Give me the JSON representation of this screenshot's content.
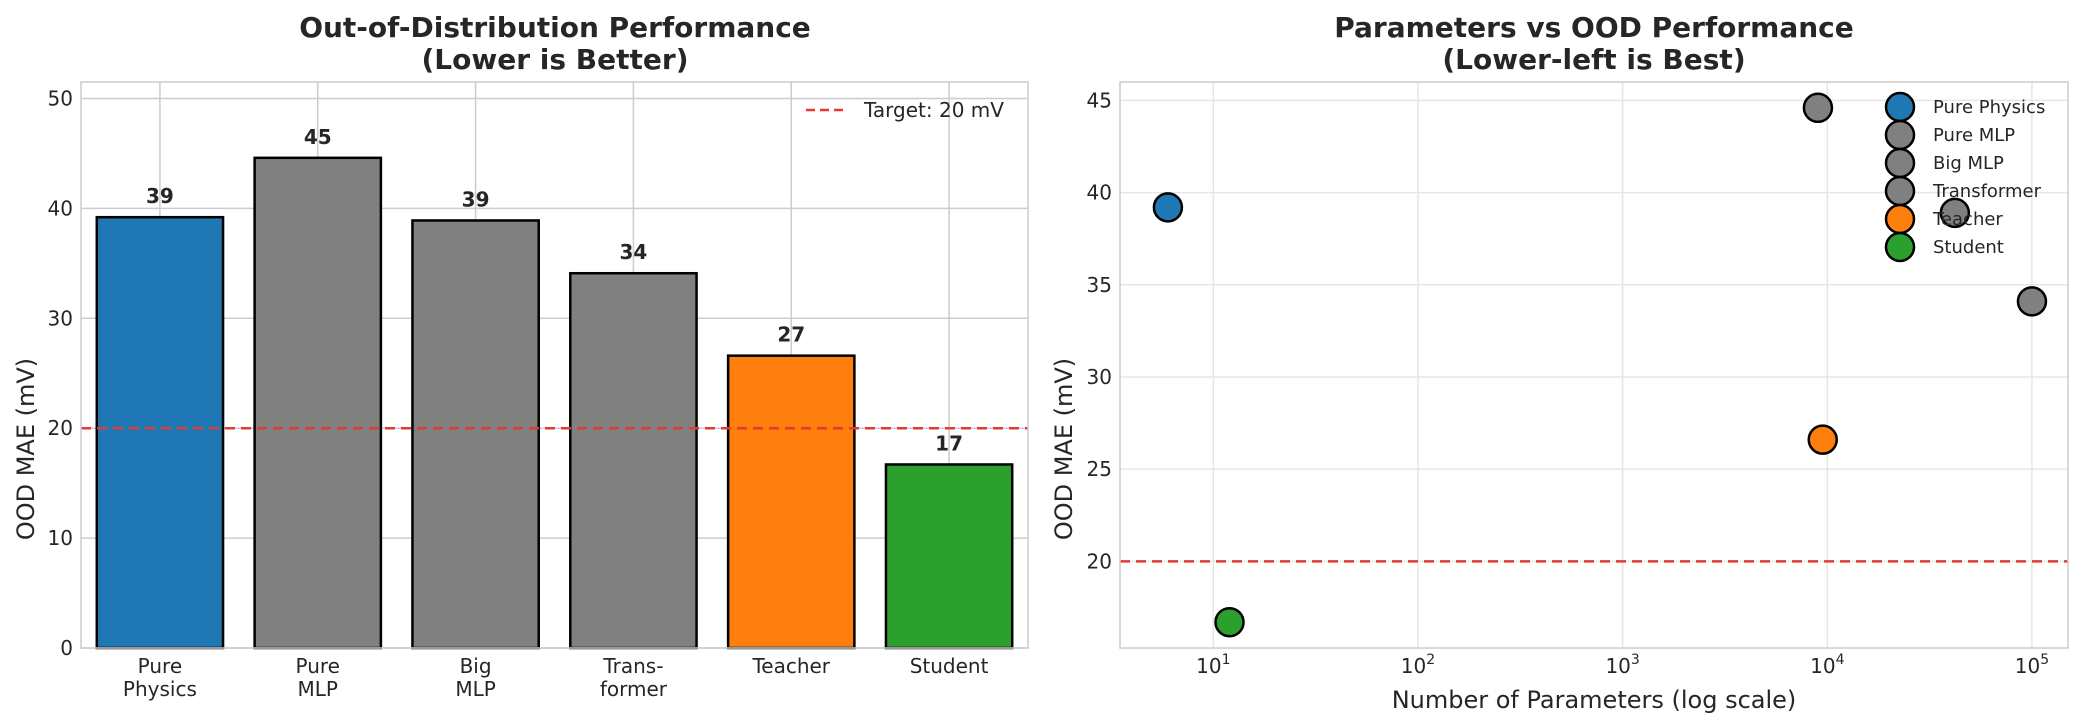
{
  "chart_data": [
    {
      "type": "bar",
      "title": "Out-of-Distribution Performance",
      "subtitle": "(Lower is Better)",
      "xlabel": "",
      "ylabel": "OOD MAE (mV)",
      "ylim": [
        0,
        51.5
      ],
      "yticks": [
        "0",
        "10",
        "20",
        "30",
        "40",
        "50"
      ],
      "grid": true,
      "categories": [
        [
          "Pure",
          "Physics"
        ],
        [
          "Pure",
          "MLP"
        ],
        [
          "Big",
          "MLP"
        ],
        [
          "Trans-",
          "former"
        ],
        [
          "Teacher"
        ],
        [
          "Student"
        ]
      ],
      "values": [
        39.2,
        44.6,
        38.9,
        34.1,
        26.6,
        16.7
      ],
      "data_labels": [
        "39",
        "45",
        "39",
        "34",
        "27",
        "17"
      ],
      "colors": [
        "#1f77b4",
        "#808080",
        "#808080",
        "#808080",
        "#ff7f0e",
        "#2ca02c"
      ],
      "reference_line": {
        "value": 20,
        "label": "Target: 20 mV",
        "color": "#e53935"
      },
      "legend_position": "top-right"
    },
    {
      "type": "scatter",
      "title": "Parameters vs OOD Performance",
      "subtitle": "(Lower-left is Best)",
      "xlabel": "Number of Parameters (log scale)",
      "ylabel": "OOD MAE (mV)",
      "x_scale": "log",
      "xlim": [
        3.5,
        150000
      ],
      "ylim": [
        15.3,
        46
      ],
      "xticks": [
        {
          "value": 10,
          "base": "10",
          "exp": "1"
        },
        {
          "value": 100,
          "base": "10",
          "exp": "2"
        },
        {
          "value": 1000,
          "base": "10",
          "exp": "3"
        },
        {
          "value": 10000,
          "base": "10",
          "exp": "4"
        },
        {
          "value": 100000,
          "base": "10",
          "exp": "5"
        }
      ],
      "yticks": [
        "20",
        "25",
        "30",
        "35",
        "40",
        "45"
      ],
      "grid": true,
      "reference_line": {
        "value": 20,
        "color": "#e53935"
      },
      "legend_position": "top-right",
      "series": [
        {
          "name": "Pure Physics",
          "x": 6,
          "y": 39.2,
          "color": "#1f77b4"
        },
        {
          "name": "Pure MLP",
          "x": 9000,
          "y": 44.6,
          "color": "#808080"
        },
        {
          "name": "Big MLP",
          "x": 42000,
          "y": 38.9,
          "color": "#808080"
        },
        {
          "name": "Transformer",
          "x": 100000,
          "y": 34.1,
          "color": "#808080"
        },
        {
          "name": "Teacher",
          "x": 9500,
          "y": 26.6,
          "color": "#ff7f0e"
        },
        {
          "name": "Student",
          "x": 12,
          "y": 16.7,
          "color": "#2ca02c"
        }
      ]
    }
  ]
}
